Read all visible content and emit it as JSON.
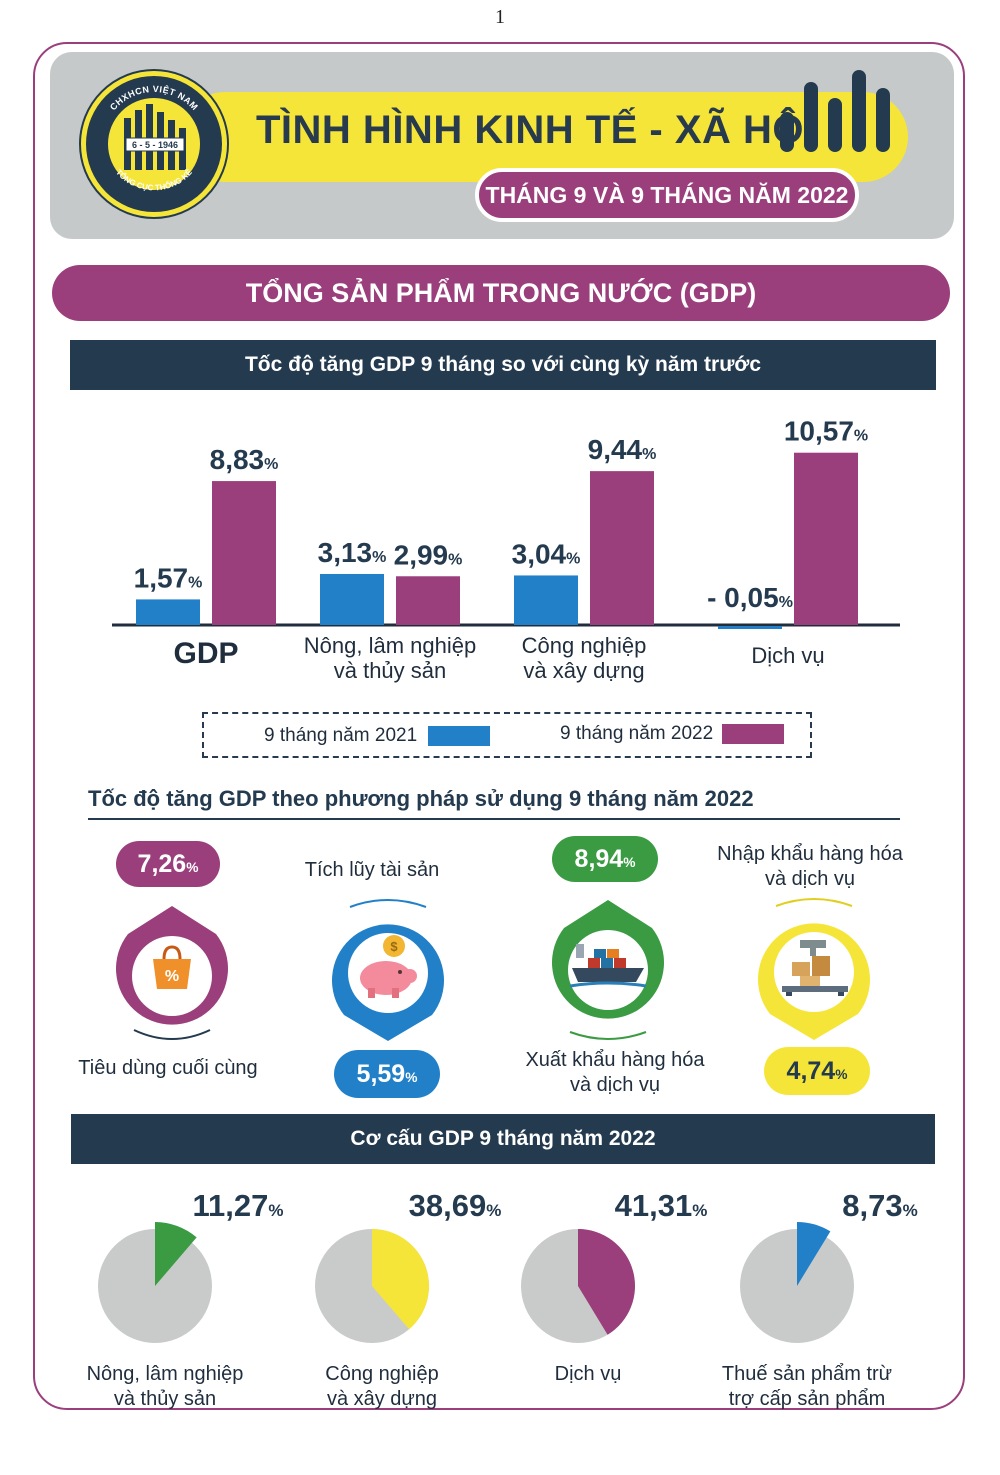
{
  "page_number": "1",
  "header": {
    "logo_top_text": "CHXHCN VIỆT NAM",
    "logo_date": "6 - 5 - 1946",
    "logo_bottom_text": "TỔNG CỤC THỐNG KÊ",
    "title": "TÌNH HÌNH KINH TẾ - XÃ HỘI",
    "subtitle": "THÁNG 9 VÀ 9 THÁNG NĂM 2022"
  },
  "section_title": "TỔNG SẢN PHẨM TRONG NƯỚC (GDP)",
  "colors": {
    "series_2021": "#2280c9",
    "series_2022": "#9a3f7c",
    "navy": "#243a4f",
    "green": "#3a9b43",
    "yellow": "#f6e539",
    "pie_gray": "#c9cbcb"
  },
  "chart_data": [
    {
      "type": "bar",
      "title": "Tốc độ tăng GDP 9 tháng so với cùng kỳ năm trước",
      "categories": [
        "GDP",
        "Nông, lâm nghiệp và thủy sản",
        "Công nghiệp và xây dựng",
        "Dịch vụ"
      ],
      "category_lines": [
        [
          "GDP"
        ],
        [
          "Nông, lâm nghiệp",
          "và thủy sản"
        ],
        [
          "Công nghiệp",
          "và xây dựng"
        ],
        [
          "Dịch vụ"
        ]
      ],
      "series": [
        {
          "name": "9 tháng năm 2021",
          "values": [
            1.57,
            3.13,
            3.04,
            -0.05
          ],
          "labels": [
            "1,57",
            "3,13",
            "3,04",
            "- 0,05"
          ]
        },
        {
          "name": "9 tháng năm 2022",
          "values": [
            8.83,
            2.99,
            9.44,
            10.57
          ],
          "labels": [
            "8,83",
            "2,99",
            "9,44",
            "10,57"
          ]
        }
      ],
      "unit": "%",
      "ylim": [
        -0.5,
        12
      ],
      "legend_position": "bottom",
      "grid": false
    },
    {
      "type": "pie",
      "title": "Cơ cấu GDP 9 tháng năm 2022",
      "unit": "%",
      "items": [
        {
          "label_lines": [
            "Nông, lâm nghiệp",
            "và thủy sản"
          ],
          "value": 11.27,
          "display": "11,27",
          "color": "#3a9b43"
        },
        {
          "label_lines": [
            "Công nghiệp",
            "và xây dựng"
          ],
          "value": 38.69,
          "display": "38,69",
          "color": "#f6e539"
        },
        {
          "label_lines": [
            "Dịch vụ"
          ],
          "value": 41.31,
          "display": "41,31",
          "color": "#9a3f7c"
        },
        {
          "label_lines": [
            "Thuế sản phẩm trừ",
            "trợ cấp sản phẩm"
          ],
          "value": 8.73,
          "display": "8,73",
          "color": "#2280c9"
        }
      ]
    }
  ],
  "usage": {
    "title": "Tốc độ tăng GDP theo phương pháp sử dụng 9 tháng năm 2022",
    "items": [
      {
        "label": "Tiêu dùng cuối cùng",
        "value": "7,26",
        "unit": "%",
        "color": "#9a3f7c",
        "icon": "shopping-bag-icon"
      },
      {
        "label": "Tích lũy tài sản",
        "value": "5,59",
        "unit": "%",
        "color": "#2280c9",
        "icon": "piggy-bank-icon"
      },
      {
        "label_lines": [
          "Xuất khẩu hàng hóa",
          "và dịch vụ"
        ],
        "value": "8,94",
        "unit": "%",
        "color": "#3a9b43",
        "icon": "cargo-ship-icon"
      },
      {
        "label_lines": [
          "Nhập khẩu hàng hóa",
          "và dịch vụ"
        ],
        "value": "4,74",
        "unit": "%",
        "color": "#f6e539",
        "icon": "warehouse-scale-icon"
      }
    ]
  }
}
